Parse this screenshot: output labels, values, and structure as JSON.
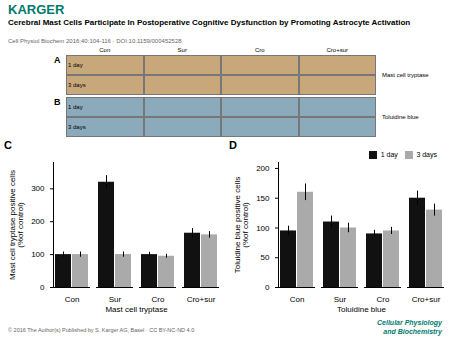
{
  "logo": {
    "text": "KARGER",
    "color": "#007a6e"
  },
  "title": "Cerebral Mast Cells Participate In Postoperative Cognitive Dysfunction by Promoting Astrocyte Activation",
  "subtitle": "Cell Physiol Biochem 2016;40:104-116 · DOI:10.1159/000452528",
  "panels": [
    {
      "label": "A",
      "text": "Mast cell tryptase",
      "columns": [
        "Con",
        "Sur",
        "Cro",
        "Cro+sur"
      ],
      "rows": [
        "1 day",
        "3 days"
      ],
      "color": "#c8a87a"
    },
    {
      "label": "B",
      "text": "Toluidine blue",
      "columns": [
        "Con",
        "Sur",
        "Cro",
        "Cro+sur"
      ],
      "rows": [
        "1 day",
        "3 days"
      ],
      "color": "#8baabb"
    }
  ],
  "chart_data": [
    {
      "type": "bar",
      "title": "C",
      "xlabel": "Mast cell tryptase",
      "ylabel": "Mast cell tryptase positive cells\n(%of control)",
      "categories": [
        "Con",
        "Sur",
        "Cro",
        "Cro+sur"
      ],
      "series": [
        {
          "name": "1 day",
          "color": "#111111",
          "values": [
            100,
            320,
            100,
            165
          ],
          "errors": [
            8,
            20,
            7,
            14
          ]
        },
        {
          "name": "3 days",
          "color": "#aaaaaa",
          "values": [
            100,
            100,
            95,
            160
          ],
          "errors": [
            8,
            8,
            6,
            10
          ]
        }
      ],
      "ylim": [
        0,
        380
      ],
      "yticks": [
        0,
        100,
        200,
        300
      ]
    },
    {
      "type": "bar",
      "title": "D",
      "xlabel": "Toluidine blue",
      "ylabel": "Toluidine blue positive cells\n(%of control)",
      "categories": [
        "Con",
        "Sur",
        "Cro",
        "Cro+sur"
      ],
      "series": [
        {
          "name": "1 day",
          "color": "#111111",
          "values": [
            95,
            110,
            90,
            150
          ],
          "errors": [
            8,
            10,
            6,
            12
          ]
        },
        {
          "name": "3 days",
          "color": "#aaaaaa",
          "values": [
            160,
            100,
            95,
            130
          ],
          "errors": [
            14,
            8,
            6,
            10
          ]
        }
      ],
      "ylim": [
        0,
        210
      ],
      "yticks": [
        0,
        50,
        100,
        150,
        200
      ],
      "legend": "upper right"
    }
  ],
  "footer": {
    "text": "© 2016 The Author(s) Published by S. Karger AG, Basel · CC BY-NC-ND 4.0",
    "journal": [
      "Cellular Physiology",
      "and Biochemistry"
    ],
    "color": "#007a6e"
  }
}
